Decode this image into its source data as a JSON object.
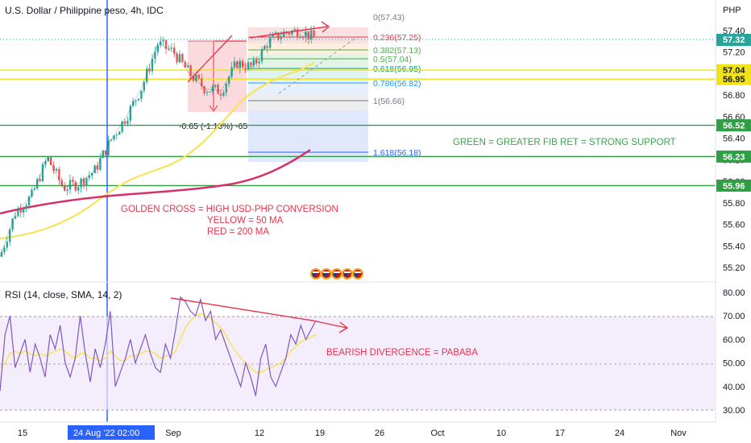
{
  "header": {
    "title": "U.S. Dollar / Philippine peso, 4h, IDC",
    "currency": "PHP"
  },
  "chart_data": [
    {
      "type": "line",
      "pane": "price",
      "price_axis": {
        "ticks": [
          "57.40",
          "57.20",
          "57.00",
          "56.80",
          "56.60",
          "56.40",
          "56.20",
          "56.00",
          "55.80",
          "55.60",
          "55.40",
          "55.20"
        ],
        "ylim": [
          55.1,
          57.6
        ]
      },
      "time_axis": {
        "ticks": [
          "15",
          "Sep",
          "12",
          "19",
          "26",
          "Oct",
          "10",
          "17",
          "24",
          "Nov"
        ],
        "crosshair_label": "24 Aug '22  02:00"
      },
      "last_price": "57.32",
      "series": [
        {
          "name": "",
          "x": [
            "Aug 12",
            "Aug 15",
            "Aug 18",
            "Aug 22",
            "Aug 24",
            "Aug 26",
            "Aug 29",
            "Aug 31",
            "Sep 1",
            "Sep 2",
            "Sep 5",
            "Sep 6",
            "Sep 7",
            "Sep 8",
            "Sep 9",
            "Sep 12",
            "Sep 13",
            "Sep 14",
            "Sep 15",
            "Sep 16",
            "Sep 17"
          ],
          "values": [
            55.3,
            55.72,
            55.86,
            56.22,
            55.94,
            55.98,
            56.1,
            56.38,
            56.6,
            56.88,
            57.28,
            57.2,
            57.0,
            56.86,
            56.84,
            57.1,
            57.06,
            57.3,
            57.38,
            57.4,
            57.32
          ]
        }
      ],
      "moving_averages": [
        {
          "name": "50 MA",
          "color": "#f7e35a"
        },
        {
          "name": "200 MA",
          "color": "#d62f6a"
        }
      ],
      "horizontal_levels": [
        {
          "value": "57.04",
          "color": "#f2e318"
        },
        {
          "value": "56.95",
          "color": "#f2e318"
        },
        {
          "value": "56.52",
          "color": "#2f9e44"
        },
        {
          "value": "56.23",
          "color": "#2f9e44"
        },
        {
          "value": "55.96",
          "color": "#2f9e44"
        }
      ],
      "fibonacci": [
        {
          "label": "0(57.43)",
          "color": "#787b86"
        },
        {
          "label": "0.236(57.25)",
          "color": "#f23645"
        },
        {
          "label": "0.382(57.13)",
          "color": "#4caf50"
        },
        {
          "label": "0.5(57.04)",
          "color": "#4caf50"
        },
        {
          "label": "0.618(56.95)",
          "color": "#089981"
        },
        {
          "label": "0.786(56.82)",
          "color": "#2196f3"
        },
        {
          "label": "1(56.66)",
          "color": "#787b86"
        },
        {
          "label": "1.618(56.18)",
          "color": "#2962ff"
        }
      ],
      "measure_label": "-0.65 (-1.13%) -65",
      "annotations": [
        {
          "text": "GOLDEN CROSS = HIGH USD-PHP CONVERSION",
          "color": "#e8334a"
        },
        {
          "text": "YELLOW = 50 MA",
          "color": "#e8334a"
        },
        {
          "text": "RED = 200 MA",
          "color": "#e8334a"
        },
        {
          "text": "GREEN = GREATER FIB RET = STRONG SUPPORT",
          "color": "#3aa34a"
        }
      ]
    },
    {
      "type": "line",
      "pane": "rsi",
      "title": "RSI (14, close, SMA, 14, 2)",
      "y_ticks": [
        "80.00",
        "70.00",
        "60.00",
        "50.00",
        "40.00",
        "30.00"
      ],
      "ylim": [
        28,
        82
      ],
      "band": [
        30,
        70
      ],
      "series": [
        {
          "name": "RSI",
          "color": "#7e57c2",
          "values": [
            38,
            62,
            70,
            48,
            54,
            60,
            46,
            58,
            52,
            44,
            62,
            56,
            66,
            50,
            44,
            52,
            70,
            54,
            42,
            56,
            48,
            58,
            72,
            40,
            46,
            52,
            60,
            50,
            56,
            62,
            54,
            48,
            46,
            58,
            52,
            64,
            78,
            76,
            72,
            70,
            77,
            68,
            72,
            60,
            64,
            58,
            52,
            46,
            40,
            50,
            44,
            36,
            52,
            58,
            44,
            40,
            46,
            52,
            62,
            58,
            66,
            60,
            64,
            68
          ]
        },
        {
          "name": "RSI-based MA",
          "color": "#f7e35a",
          "values": [
            48,
            50,
            54,
            55,
            54,
            55,
            54,
            53,
            54,
            53,
            54,
            55,
            56,
            55,
            53,
            52,
            54,
            54,
            52,
            52,
            51,
            52,
            55,
            53,
            51,
            51,
            53,
            53,
            54,
            55,
            55,
            54,
            52,
            53,
            53,
            55,
            60,
            65,
            68,
            70,
            71,
            70,
            69,
            67,
            65,
            62,
            58,
            55,
            52,
            50,
            48,
            46,
            46,
            47,
            48,
            49,
            50,
            52,
            55,
            57,
            59,
            60,
            61,
            62
          ]
        }
      ],
      "annotation": {
        "text": "BEARISH DIVERGENCE = PABABA",
        "color": "#e8334a"
      }
    }
  ],
  "toolbar": {
    "flag_icons": [
      "us-flag-icon",
      "us-flag-icon",
      "us-flag-icon",
      "us-flag-icon",
      "us-flag-icon"
    ]
  }
}
